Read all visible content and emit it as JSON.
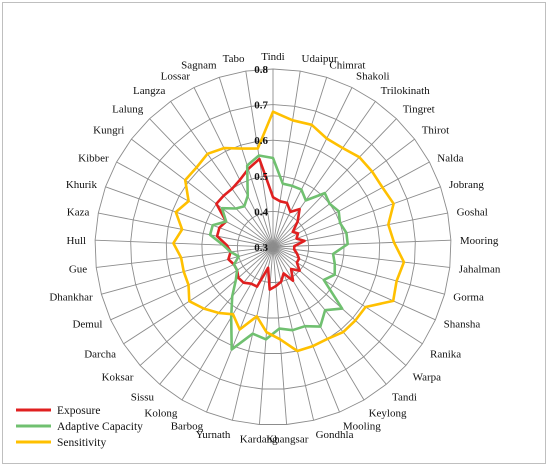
{
  "chart_data": {
    "type": "radar",
    "title": "",
    "grid": true,
    "rlim": [
      0.3,
      0.8
    ],
    "ticks": [
      "0.3",
      "0.4",
      "0.5",
      "0.6",
      "0.7",
      "0.8"
    ],
    "categories": [
      "Tindi",
      "Udaipur",
      "Chimrat",
      "Shakoli",
      "Trilokinath",
      "Tingret",
      "Thirot",
      "Nalda",
      "Jobrang",
      "Goshal",
      "Mooring",
      "Jahalman",
      "Gorma",
      "Shansha",
      "Ranika",
      "Warpa",
      "Tandi",
      "Keylong",
      "Mooling",
      "Gondhla",
      "Khangsar",
      "Kardang",
      "Yurnath",
      "Barbog",
      "Kolong",
      "Sissu",
      "Koksar",
      "Darcha",
      "Demul",
      "Dhankhar",
      "Gue",
      "Hull",
      "Kaza",
      "Khurik",
      "Kibber",
      "Kungri",
      "Lalung",
      "Langza",
      "Lossar",
      "Sagnam",
      "Tabo"
    ],
    "legend_position": "bottom-left",
    "series": [
      {
        "name": "Exposure",
        "color": "#e02020",
        "values": [
          0.44,
          0.43,
          0.43,
          0.41,
          0.43,
          0.4,
          0.37,
          0.38,
          0.37,
          0.39,
          0.36,
          0.36,
          0.37,
          0.38,
          0.38,
          0.4,
          0.38,
          0.41,
          0.38,
          0.4,
          0.41,
          0.42,
          0.36,
          0.42,
          0.42,
          0.43,
          0.43,
          0.42,
          0.42,
          0.43,
          0.42,
          0.43,
          0.46,
          0.46,
          0.45,
          0.5,
          0.5,
          0.5,
          0.51,
          0.53,
          0.55
        ]
      },
      {
        "name": "Adaptive Capacity",
        "color": "#70c070",
        "values": [
          0.55,
          0.48,
          0.48,
          0.48,
          0.46,
          0.51,
          0.5,
          0.51,
          0.5,
          0.51,
          0.51,
          0.47,
          0.48,
          0.49,
          0.47,
          0.56,
          0.53,
          0.56,
          0.54,
          0.54,
          0.53,
          0.56,
          0.55,
          0.61,
          0.53,
          0.48,
          0.44,
          0.42,
          0.42,
          0.4,
          0.42,
          0.44,
          0.48,
          0.48,
          0.45,
          0.48,
          0.45,
          0.44,
          0.46,
          0.54,
          0.56
        ]
      },
      {
        "name": "Sensitivity",
        "color": "#ffc000",
        "values": [
          0.68,
          0.66,
          0.66,
          0.64,
          0.64,
          0.65,
          0.65,
          0.65,
          0.66,
          0.63,
          0.64,
          0.67,
          0.66,
          0.67,
          0.61,
          0.61,
          0.61,
          0.6,
          0.6,
          0.6,
          0.56,
          0.54,
          0.5,
          0.55,
          0.52,
          0.54,
          0.56,
          0.58,
          0.56,
          0.56,
          0.56,
          0.58,
          0.56,
          0.59,
          0.57,
          0.61,
          0.61,
          0.62,
          0.61,
          0.59,
          0.58
        ]
      }
    ]
  }
}
